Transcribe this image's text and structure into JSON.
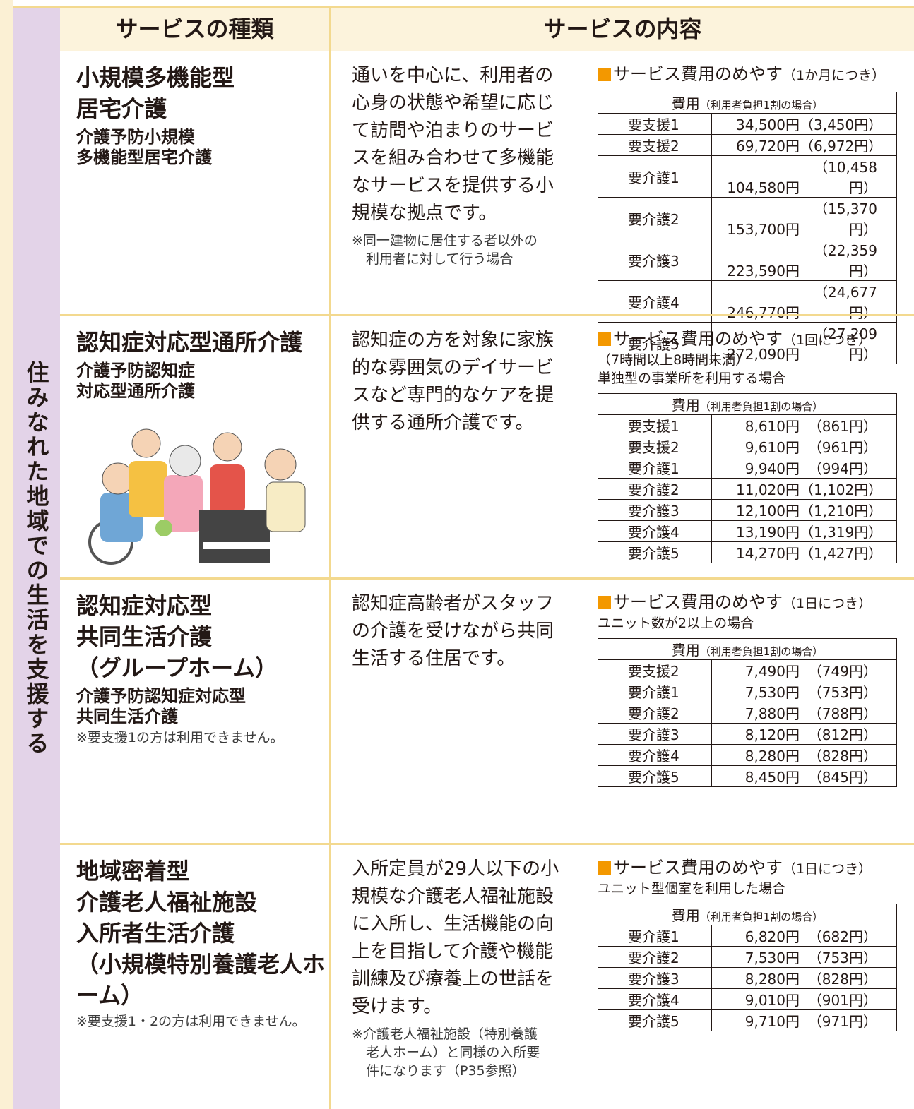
{
  "side_label": "住みなれた地域での生活を支援する",
  "header": {
    "type_col": "サービスの種類",
    "content_col": "サービスの内容"
  },
  "sections": [
    {
      "name_lines": [
        "小規模多機能型",
        "居宅介護"
      ],
      "sub_lines": [
        "介護予防小規模",
        "多機能型居宅介護"
      ],
      "description_lines": [
        "通いを中心に、利用者の",
        "心身の状態や希望に応じ",
        "て訪問や泊まりのサービ",
        "スを組み合わせて多機能",
        "なサービスを提供する小",
        "規模な拠点です。"
      ],
      "description_note_lines": [
        "※同一建物に居住する者以外の",
        "利用者に対して行う場合"
      ],
      "cost": {
        "heading": "サービス費用のめやす",
        "unit": "（1か月につき）",
        "conditions": [],
        "table_header": "費用",
        "table_header_note": "（利用者負担1割の場合）",
        "rows": [
          [
            "要支援1",
            "34,500円",
            "（3,450円）"
          ],
          [
            "要支援2",
            "69,720円",
            "（6,972円）"
          ],
          [
            "要介護1",
            "104,580円",
            "（10,458円）"
          ],
          [
            "要介護2",
            "153,700円",
            "（15,370円）"
          ],
          [
            "要介護3",
            "223,590円",
            "（22,359円）"
          ],
          [
            "要介護4",
            "246,770円",
            "（24,677円）"
          ],
          [
            "要介護5",
            "272,090円",
            "（27,209円）"
          ]
        ]
      }
    },
    {
      "name_lines": [
        "認知症対応型通所介護"
      ],
      "sub_lines": [
        "介護予防認知症",
        "対応型通所介護"
      ],
      "description_lines": [
        "認知症の方を対象に家族",
        "的な雰囲気のデイサービ",
        "スなど専門的なケアを提",
        "供する通所介護です。"
      ],
      "cost": {
        "heading": "サービス費用のめやす",
        "unit": "（1回につき）",
        "conditions": [
          "（7時間以上8時間未満）",
          "単独型の事業所を利用する場合"
        ],
        "table_header": "費用",
        "table_header_note": "（利用者負担1割の場合）",
        "rows": [
          [
            "要支援1",
            "8,610円",
            "（861円）"
          ],
          [
            "要支援2",
            "9,610円",
            "（961円）"
          ],
          [
            "要介護1",
            "9,940円",
            "（994円）"
          ],
          [
            "要介護2",
            "11,020円",
            "（1,102円）"
          ],
          [
            "要介護3",
            "12,100円",
            "（1,210円）"
          ],
          [
            "要介護4",
            "13,190円",
            "（1,319円）"
          ],
          [
            "要介護5",
            "14,270円",
            "（1,427円）"
          ]
        ]
      }
    },
    {
      "name_lines": [
        "認知症対応型",
        "共同生活介護",
        "（グループホーム）"
      ],
      "sub_lines": [
        "介護予防認知症対応型",
        "共同生活介護"
      ],
      "note": "※要支援1の方は利用できません。",
      "description_lines": [
        "認知症高齢者がスタッフ",
        "の介護を受けながら共同",
        "生活する住居です。"
      ],
      "cost": {
        "heading": "サービス費用のめやす",
        "unit": "（1日につき）",
        "conditions": [
          "ユニット数が2以上の場合"
        ],
        "table_header": "費用",
        "table_header_note": "（利用者負担1割の場合）",
        "rows": [
          [
            "要支援2",
            "7,490円",
            "（749円）"
          ],
          [
            "要介護1",
            "7,530円",
            "（753円）"
          ],
          [
            "要介護2",
            "7,880円",
            "（788円）"
          ],
          [
            "要介護3",
            "8,120円",
            "（812円）"
          ],
          [
            "要介護4",
            "8,280円",
            "（828円）"
          ],
          [
            "要介護5",
            "8,450円",
            "（845円）"
          ]
        ]
      }
    },
    {
      "name_lines": [
        "地域密着型",
        "介護老人福祉施設",
        "入所者生活介護",
        "（小規模特別養護老人ホーム）"
      ],
      "note": "※要支援1・2の方は利用できません。",
      "description_lines": [
        "入所定員が29人以下の小",
        "規模な介護老人福祉施設",
        "に入所し、生活機能の向",
        "上を目指して介護や機能",
        "訓練及び療養上の世話を",
        "受けます。"
      ],
      "description_note_lines": [
        "※介護老人福祉施設（特別養護",
        "老人ホーム）と同様の入所要",
        "件になります（P35参照）"
      ],
      "cost": {
        "heading": "サービス費用のめやす",
        "unit": "（1日につき）",
        "conditions": [
          "ユニット型個室を利用した場合"
        ],
        "table_header": "費用",
        "table_header_note": "（利用者負担1割の場合）",
        "rows": [
          [
            "要介護1",
            "6,820円",
            "（682円）"
          ],
          [
            "要介護2",
            "7,530円",
            "（753円）"
          ],
          [
            "要介護3",
            "8,280円",
            "（828円）"
          ],
          [
            "要介護4",
            "9,010円",
            "（901円）"
          ],
          [
            "要介護5",
            "9,710円",
            "（971円）"
          ]
        ]
      }
    }
  ]
}
